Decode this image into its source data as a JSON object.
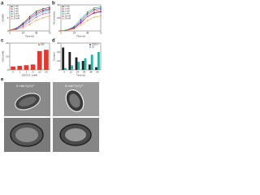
{
  "panel_labels": [
    "a",
    "b",
    "c",
    "d",
    "e"
  ],
  "chart_data": [
    {
      "type": "line",
      "x_label": "Time (h)",
      "y_label": "OD600",
      "x": [
        0,
        12,
        24,
        36,
        48,
        60,
        72
      ],
      "xlim": [
        0,
        72
      ],
      "xticks": [
        0,
        24,
        48,
        72
      ],
      "ylim": [
        0,
        2
      ],
      "yticks": [
        0,
        1,
        2
      ],
      "series": [
        {
          "name": "0 mM",
          "color": "#222222",
          "values": [
            0.05,
            0.2,
            0.6,
            1.1,
            1.5,
            1.7,
            1.8
          ]
        },
        {
          "name": "1 mM",
          "color": "#e02020",
          "values": [
            0.05,
            0.2,
            0.55,
            1.0,
            1.4,
            1.6,
            1.7
          ]
        },
        {
          "name": "2 mM",
          "color": "#2040e0",
          "values": [
            0.05,
            0.18,
            0.5,
            0.95,
            1.3,
            1.55,
            1.65
          ]
        },
        {
          "name": "5 mM",
          "color": "#20a040",
          "values": [
            0.05,
            0.15,
            0.45,
            0.85,
            1.2,
            1.45,
            1.55
          ]
        },
        {
          "name": "10 mM",
          "color": "#d020d0",
          "values": [
            0.05,
            0.12,
            0.35,
            0.7,
            1.05,
            1.3,
            1.4
          ]
        },
        {
          "name": "20 mM",
          "color": "#e09020",
          "values": [
            0.05,
            0.1,
            0.25,
            0.5,
            0.8,
            1.0,
            1.15
          ]
        }
      ]
    },
    {
      "type": "line",
      "x_label": "Time (h)",
      "y_label": "H2 (mmol/L)",
      "x": [
        0,
        12,
        24,
        36,
        48,
        60,
        72
      ],
      "xlim": [
        0,
        72
      ],
      "xticks": [
        0,
        24,
        48,
        72
      ],
      "ylim": [
        0,
        40
      ],
      "yticks": [
        0,
        20,
        40
      ],
      "series": [
        {
          "name": "0 mM",
          "color": "#222222",
          "values": [
            0,
            1,
            4,
            12,
            22,
            28,
            30
          ]
        },
        {
          "name": "1 mM",
          "color": "#e02020",
          "values": [
            0,
            1,
            5,
            14,
            25,
            31,
            33
          ]
        },
        {
          "name": "2 mM",
          "color": "#2040e0",
          "values": [
            0,
            1,
            6,
            16,
            27,
            33,
            35
          ]
        },
        {
          "name": "5 mM",
          "color": "#20a040",
          "values": [
            0,
            2,
            7,
            18,
            29,
            35,
            37
          ]
        },
        {
          "name": "10 mM",
          "color": "#d020d0",
          "values": [
            0,
            1,
            5,
            13,
            22,
            27,
            29
          ]
        },
        {
          "name": "20 mM",
          "color": "#e09020",
          "values": [
            0,
            1,
            3,
            9,
            16,
            21,
            23
          ]
        }
      ]
    },
    {
      "type": "bar",
      "x_label": "S2O3 2- (mM)",
      "y_label": "H2S (mM)",
      "categories": [
        "0",
        "1",
        "2",
        "5",
        "10",
        "20"
      ],
      "ylim": [
        0,
        40
      ],
      "yticks": [
        0,
        20,
        40
      ],
      "series": [
        {
          "name": "H2S",
          "color": "#e03a30",
          "values": [
            5,
            6,
            7,
            8,
            28,
            30
          ]
        }
      ]
    },
    {
      "type": "bar",
      "x_label": "Time (h)",
      "y_label": "Content",
      "categories": [
        "0",
        "12",
        "24",
        "36",
        "48",
        "60"
      ],
      "ylim": [
        0,
        30
      ],
      "yticks": [
        0,
        10,
        20,
        30
      ],
      "series": [
        {
          "name": "S2O3 2-",
          "color": "#222222",
          "values": [
            25,
            20,
            14,
            10,
            6,
            3
          ]
        },
        {
          "name": "S2-",
          "color": "#2ab0a0",
          "values": [
            2,
            5,
            9,
            13,
            17,
            20
          ]
        }
      ]
    }
  ],
  "micrographs": [
    {
      "label": "0 mM S₂O₃²⁻"
    },
    {
      "label": "5 mM S₂O₃²⁻"
    }
  ]
}
